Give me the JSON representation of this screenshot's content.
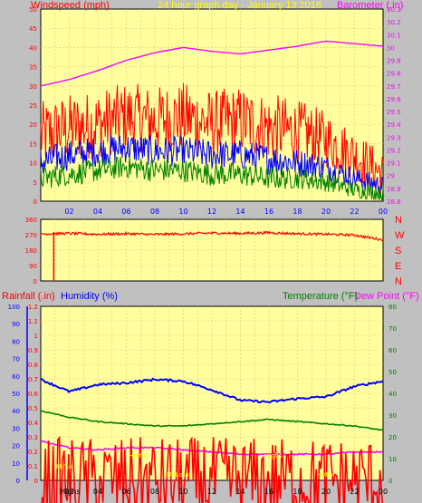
{
  "colors": {
    "background": "#c0c0c0",
    "plot_bg": "#ffffa0",
    "grid": "#e8c070",
    "wind_gust": "#ff0000",
    "wind_avg": "#0000ff",
    "wind_speed": "#008000",
    "barometer": "#ff00ff",
    "direction": "#ff0000",
    "rain": "#ff0000",
    "humidity": "#0000ff",
    "temperature": "#008000",
    "dewpoint": "#ff00ff",
    "faint_text": "#ffff00"
  },
  "header": {
    "left_label": "Windspeed (mph)",
    "center_label": "24 hour graph day - January 13 2016",
    "right_label": "Barometer (.in)"
  },
  "direction_letters": [
    "N",
    "W",
    "S",
    "E",
    "N"
  ],
  "bottom_labels": {
    "rain": "Rainfall (.in)",
    "humidity": "Humidity (%)",
    "temperature": "Temperature (°F)",
    "dewpoint": "Dew Point (°F)"
  },
  "x_ticks": [
    "02",
    "04",
    "06",
    "08",
    "10",
    "12",
    "14",
    "16",
    "18",
    "20",
    "22",
    "00"
  ],
  "faint_annotations": [
    "Highs",
    "Hi/Lo",
    "Highs",
    "Hi/Lo/Av",
    "Highs",
    "Hi/Lo"
  ],
  "chart_data": [
    {
      "type": "line",
      "title": "24 hour graph day - January 13 2016",
      "ylabel": "Windspeed (mph)",
      "ylim": [
        0,
        50
      ],
      "yticks": [
        0,
        5,
        10,
        15,
        20,
        25,
        30,
        35,
        40,
        45,
        50
      ],
      "y2label": "Barometer (.in)",
      "y2lim": [
        28.8,
        30.3
      ],
      "y2ticks": [
        "28.8",
        "28.9",
        "29",
        "29.1",
        "29.2",
        "29.3",
        "29.4",
        "29.5",
        "29.6",
        "29.7",
        "29.8",
        "29.9",
        "30",
        "30.1",
        "30.2",
        "30.3"
      ],
      "x": [
        "00",
        "02",
        "04",
        "06",
        "08",
        "10",
        "12",
        "14",
        "16",
        "18",
        "20",
        "22",
        "00"
      ],
      "series": [
        {
          "name": "Gust",
          "axis": "left",
          "values": [
            17,
            19,
            20,
            22,
            21,
            22,
            20,
            21,
            19,
            18,
            16,
            12,
            7
          ]
        },
        {
          "name": "Average",
          "axis": "left",
          "values": [
            10,
            12,
            13,
            14,
            13,
            13,
            12,
            12,
            11,
            10,
            9,
            6,
            4
          ]
        },
        {
          "name": "Speed",
          "axis": "left",
          "values": [
            6,
            7,
            8,
            9,
            8,
            8,
            7,
            7,
            6,
            6,
            5,
            3,
            2
          ]
        },
        {
          "name": "Barometer",
          "axis": "right",
          "values": [
            29.7,
            29.75,
            29.82,
            29.9,
            29.96,
            30.0,
            29.97,
            29.95,
            29.98,
            30.01,
            30.05,
            30.03,
            30.01
          ]
        }
      ],
      "grid": true
    },
    {
      "type": "line",
      "ylabel": "Wind direction",
      "ylim": [
        0,
        360
      ],
      "yticks": [
        0,
        90,
        180,
        270,
        360
      ],
      "x": [
        "00",
        "02",
        "04",
        "06",
        "08",
        "10",
        "12",
        "14",
        "16",
        "18",
        "20",
        "22",
        "00"
      ],
      "series": [
        {
          "name": "Direction",
          "values": [
            275,
            278,
            273,
            276,
            272,
            275,
            280,
            278,
            282,
            276,
            273,
            268,
            240
          ]
        }
      ],
      "grid": true
    },
    {
      "type": "line",
      "ylim": [
        0,
        1.2
      ],
      "yticks": [
        "0",
        "0.1",
        "0.2",
        "0.3",
        "0.4",
        "0.5",
        "0.6",
        "0.7",
        "0.8",
        "0.9",
        "1",
        "1.1",
        "1.2"
      ],
      "humidity_ticks": [
        0,
        10,
        20,
        30,
        40,
        50,
        60,
        70,
        80,
        90,
        100
      ],
      "y2lim": [
        0,
        80
      ],
      "y2ticks": [
        0,
        10,
        20,
        30,
        40,
        50,
        60,
        70,
        80
      ],
      "x": [
        "00",
        "02",
        "04",
        "06",
        "08",
        "10",
        "12",
        "14",
        "16",
        "18",
        "20",
        "22",
        "00"
      ],
      "series": [
        {
          "name": "Humidity (%)",
          "axis": "humidity",
          "values": [
            58,
            51,
            55,
            56,
            58,
            57,
            52,
            46,
            45,
            47,
            48,
            54,
            57
          ]
        },
        {
          "name": "Temperature (°F)",
          "axis": "right",
          "values": [
            32,
            29,
            27,
            26,
            25,
            25,
            26,
            27,
            28,
            27,
            26,
            25,
            23
          ]
        },
        {
          "name": "Dew Point (°F)",
          "axis": "right",
          "values": [
            18,
            15,
            14,
            15,
            15,
            14,
            13,
            12,
            12,
            12,
            12,
            13,
            13
          ]
        },
        {
          "name": "Rainfall (.in)",
          "axis": "left",
          "values": [
            0,
            0,
            0,
            0,
            0,
            0,
            0,
            0,
            0,
            0,
            0,
            0,
            0
          ]
        }
      ],
      "grid": true
    }
  ]
}
